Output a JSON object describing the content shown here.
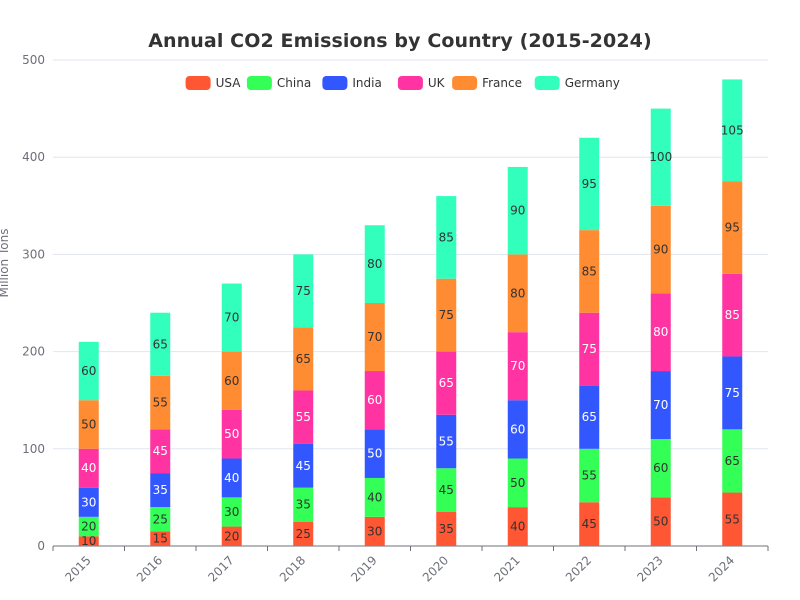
{
  "chart_data": {
    "type": "bar",
    "stacked": true,
    "title": "Annual CO2 Emissions by Country (2015-2024)",
    "ylabel": "Million Tons",
    "xlabel": "",
    "categories": [
      "2015",
      "2016",
      "2017",
      "2018",
      "2019",
      "2020",
      "2021",
      "2022",
      "2023",
      "2024"
    ],
    "ylim": [
      0,
      500
    ],
    "yticks": [
      0,
      100,
      200,
      300,
      400,
      500
    ],
    "grid": true,
    "legend_position": "top-center",
    "series": [
      {
        "name": "USA",
        "color": "#ff5733",
        "label_color": "#333333",
        "values": [
          10,
          15,
          20,
          25,
          30,
          35,
          40,
          45,
          50,
          55
        ]
      },
      {
        "name": "China",
        "color": "#33ff57",
        "label_color": "#333333",
        "values": [
          20,
          25,
          30,
          35,
          40,
          45,
          50,
          55,
          60,
          65
        ]
      },
      {
        "name": "India",
        "color": "#3357ff",
        "label_color": "#ffffff",
        "values": [
          30,
          35,
          40,
          45,
          50,
          55,
          60,
          65,
          70,
          75
        ]
      },
      {
        "name": "UK",
        "color": "#ff33a1",
        "label_color": "#ffffff",
        "values": [
          40,
          45,
          50,
          55,
          60,
          65,
          70,
          75,
          80,
          85
        ]
      },
      {
        "name": "France",
        "color": "#ff8c33",
        "label_color": "#333333",
        "values": [
          50,
          55,
          60,
          65,
          70,
          75,
          80,
          85,
          90,
          95
        ]
      },
      {
        "name": "Germany",
        "color": "#33ffbd",
        "label_color": "#333333",
        "values": [
          60,
          65,
          70,
          75,
          80,
          85,
          90,
          95,
          100,
          105
        ]
      }
    ]
  }
}
